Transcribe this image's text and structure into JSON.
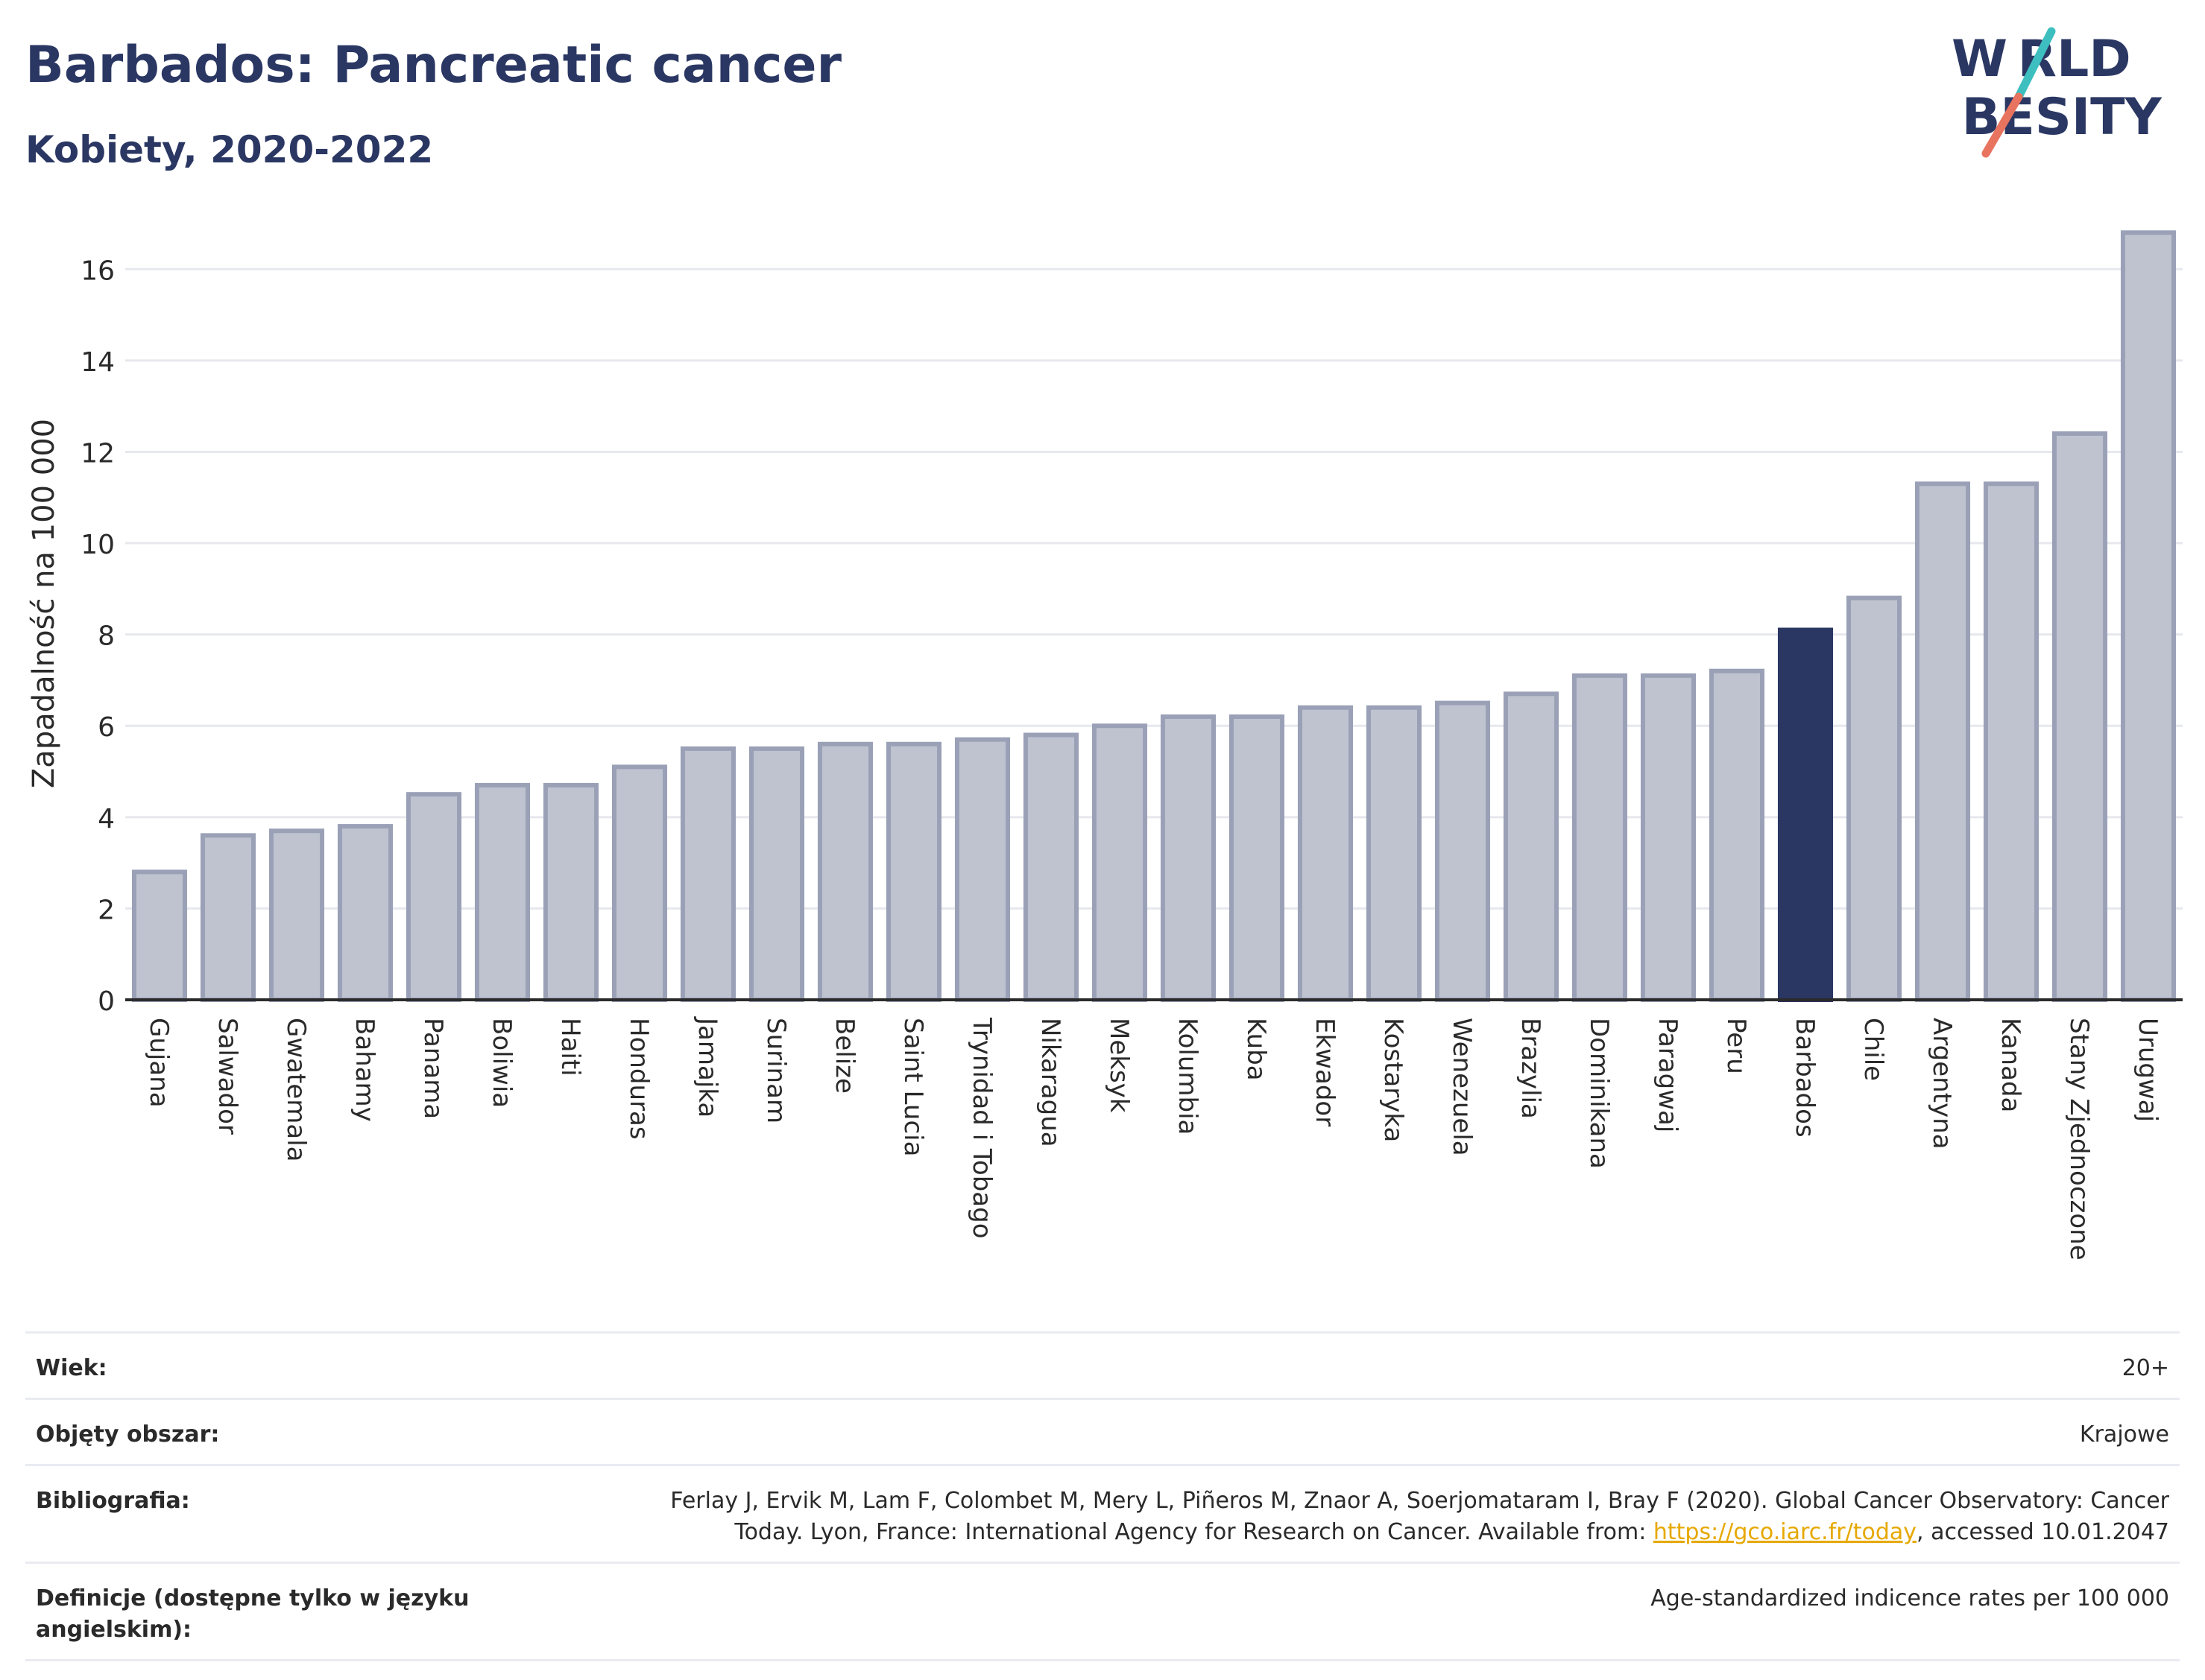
{
  "title": "Barbados: Pancreatic cancer",
  "subtitle": "Kobiety, 2020-2022",
  "logo": {
    "line1": "W RLD",
    "line2": " BESITY",
    "colors": [
      "#2b3763",
      "#3dbfbf",
      "#e8735f"
    ]
  },
  "colors": {
    "bar": "#bfc3d0",
    "bar_edge": "#9aa1b7",
    "highlight": "#2b3763",
    "grid": "#e6e8ee",
    "axis": "#2b2b2b"
  },
  "chart_data": {
    "type": "bar",
    "ylabel": "Zapadalność na 100 000",
    "ylim": [
      0,
      17
    ],
    "yticks": [
      0,
      2,
      4,
      6,
      8,
      10,
      12,
      14,
      16
    ],
    "grid": true,
    "highlight": "Barbados",
    "categories": [
      "Gujana",
      "Salwador",
      "Gwatemala",
      "Bahamy",
      "Panama",
      "Boliwia",
      "Haiti",
      "Honduras",
      "Jamajka",
      "Surinam",
      "Belize",
      "Saint Lucia",
      "Trynidad i Tobago",
      "Nikaragua",
      "Meksyk",
      "Kolumbia",
      "Kuba",
      "Ekwador",
      "Kostaryka",
      "Wenezuela",
      "Brazylia",
      "Dominikana",
      "Paragwaj",
      "Peru",
      "Barbados",
      "Chile",
      "Argentyna",
      "Kanada",
      "Stany Zjednoczone",
      "Urugwaj"
    ],
    "values": [
      2.8,
      3.6,
      3.7,
      3.8,
      4.5,
      4.7,
      4.7,
      5.1,
      5.5,
      5.5,
      5.6,
      5.6,
      5.7,
      5.8,
      6.0,
      6.2,
      6.2,
      6.4,
      6.4,
      6.5,
      6.7,
      7.1,
      7.1,
      7.2,
      8.1,
      8.8,
      11.3,
      11.3,
      12.4,
      16.8
    ]
  },
  "meta": {
    "age_label": "Wiek:",
    "age_value": "20+",
    "coverage_label": "Objęty obszar:",
    "coverage_value": "Krajowe",
    "bib_label": "Bibliografia:",
    "bib_text_1": "Ferlay J, Ervik M, Lam F, Colombet M, Mery L, Piñeros M, Znaor A, Soerjomataram I, Bray F (2020). Global Cancer Observatory: Cancer",
    "bib_text_2": "Today. Lyon, France: International Agency for Research on Cancer. Available from: ",
    "bib_link": "https://gco.iarc.fr/today",
    "bib_text_3": ", accessed 10.01.2047",
    "def_label": "Definicje (dostępne tylko w języku angielskim):",
    "def_value": "Age-standardized indicence rates per 100 000"
  }
}
